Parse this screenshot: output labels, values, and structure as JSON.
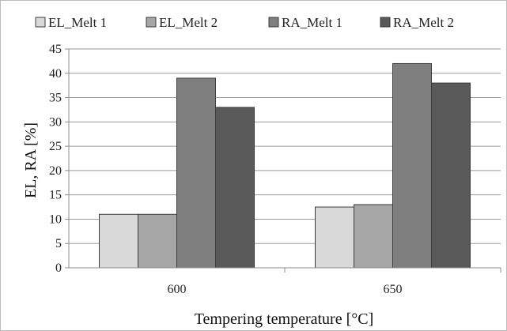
{
  "chart_data": {
    "type": "bar",
    "categories": [
      "600",
      "650"
    ],
    "series": [
      {
        "name": "EL_Melt 1",
        "values": [
          11,
          12.5
        ],
        "color": "#d9d9d9"
      },
      {
        "name": "EL_Melt 2",
        "values": [
          11,
          13
        ],
        "color": "#a6a6a6"
      },
      {
        "name": "RA_Melt 1",
        "values": [
          39,
          42
        ],
        "color": "#7f7f7f"
      },
      {
        "name": "RA_Melt 2",
        "values": [
          33,
          38
        ],
        "color": "#595959"
      }
    ],
    "xlabel": "Tempering  temperature [°C]",
    "ylabel": "EL, RA [%]",
    "ylim": [
      0,
      45
    ],
    "yticks": [
      0,
      5,
      10,
      15,
      20,
      25,
      30,
      35,
      40,
      45
    ],
    "grid": true,
    "legend": "top"
  }
}
